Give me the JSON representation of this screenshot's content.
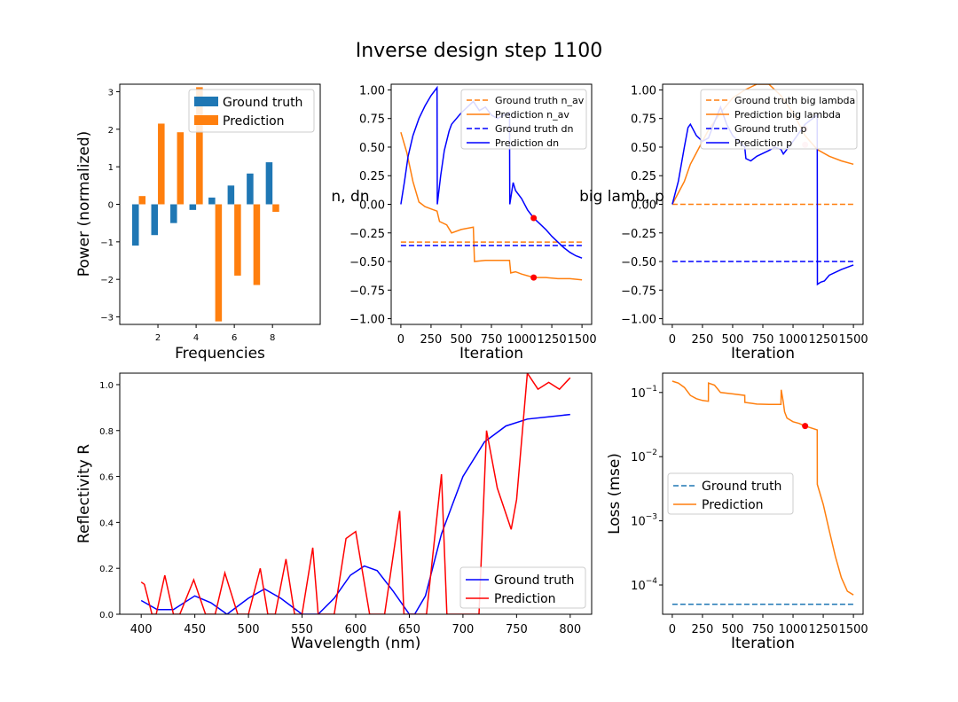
{
  "title": "Inverse design step 1100",
  "colors": {
    "c0": "#1f77b4",
    "c1": "#ff7f0e",
    "blue": "#0000ff",
    "red": "#ff0000",
    "axes": "#000000"
  },
  "chart_data": [
    {
      "id": "freq",
      "type": "bar",
      "xlabel": "Frequencies",
      "ylabel": "Power (normalized)",
      "xlim": [
        0,
        10.5
      ],
      "ylim": [
        -3.2,
        3.2
      ],
      "xticks": [
        2,
        4,
        6,
        8
      ],
      "yticks": [
        -3,
        -2,
        -1,
        0,
        1,
        2,
        3
      ],
      "legend_position": "top-right",
      "categories": [
        1,
        2,
        3,
        4,
        5,
        6,
        7,
        8,
        9
      ],
      "series": [
        {
          "name": "Ground truth",
          "color": "#1f77b4",
          "values": [
            -1.1,
            -0.82,
            -0.5,
            -0.15,
            0.18,
            0.5,
            0.82,
            1.12,
            0
          ]
        },
        {
          "name": "Prediction",
          "color": "#ff7f0e",
          "values": [
            0.22,
            2.15,
            1.92,
            3.12,
            -3.12,
            -1.9,
            -2.15,
            -0.2,
            0
          ]
        }
      ]
    },
    {
      "id": "ndn",
      "type": "line",
      "xlabel": "Iteration",
      "ylabel": "n, dn",
      "xlim": [
        -80,
        1580
      ],
      "ylim": [
        -1.05,
        1.05
      ],
      "xticks": [
        0,
        250,
        500,
        750,
        1000,
        1250,
        1500
      ],
      "yticks": [
        -1.0,
        -0.75,
        -0.5,
        -0.25,
        0.0,
        0.25,
        0.5,
        0.75,
        1.0
      ],
      "legend_position": "top-right",
      "series": [
        {
          "name": "Ground truth n_av",
          "color": "#ff7f0e",
          "dash": true,
          "x": [
            0,
            1500
          ],
          "y": [
            -0.33,
            -0.33
          ]
        },
        {
          "name": "Prediction n_av",
          "color": "#ff7f0e",
          "x": [
            0,
            50,
            100,
            150,
            200,
            250,
            300,
            320,
            380,
            420,
            500,
            600,
            610,
            700,
            900,
            910,
            950,
            1000,
            1100,
            1200,
            1300,
            1400,
            1500
          ],
          "y": [
            0.63,
            0.45,
            0.2,
            0.02,
            -0.02,
            -0.04,
            -0.06,
            -0.15,
            -0.18,
            -0.25,
            -0.22,
            -0.2,
            -0.5,
            -0.49,
            -0.49,
            -0.6,
            -0.59,
            -0.61,
            -0.64,
            -0.64,
            -0.65,
            -0.65,
            -0.66
          ]
        },
        {
          "name": "Ground truth dn",
          "color": "#0000ff",
          "dash": true,
          "x": [
            0,
            1500
          ],
          "y": [
            -0.36,
            -0.36
          ]
        },
        {
          "name": "Prediction dn",
          "color": "#0000ff",
          "x": [
            0,
            30,
            60,
            100,
            150,
            200,
            250,
            300,
            302,
            330,
            360,
            400,
            420,
            500,
            600,
            650,
            700,
            750,
            800,
            850,
            900,
            902,
            930,
            950,
            1000,
            1050,
            1100,
            1150,
            1200,
            1250,
            1300,
            1350,
            1400,
            1450,
            1500
          ],
          "y": [
            0.0,
            0.2,
            0.42,
            0.6,
            0.75,
            0.86,
            0.95,
            1.02,
            0.0,
            0.25,
            0.47,
            0.64,
            0.7,
            0.8,
            0.9,
            0.82,
            0.85,
            0.78,
            0.75,
            0.78,
            0.8,
            0.0,
            0.19,
            0.12,
            0.05,
            -0.05,
            -0.12,
            -0.17,
            -0.22,
            -0.28,
            -0.33,
            -0.38,
            -0.42,
            -0.45,
            -0.47
          ]
        }
      ],
      "markers": [
        {
          "x": 1100,
          "y": -0.12,
          "color": "#ff0000"
        },
        {
          "x": 1100,
          "y": -0.64,
          "color": "#ff0000"
        }
      ]
    },
    {
      "id": "lambp",
      "type": "line",
      "xlabel": "Iteration",
      "ylabel": "big lamb, p",
      "xlim": [
        -80,
        1580
      ],
      "ylim": [
        -1.05,
        1.05
      ],
      "xticks": [
        0,
        250,
        500,
        750,
        1000,
        1250,
        1500
      ],
      "yticks": [
        -1.0,
        -0.75,
        -0.5,
        -0.25,
        0.0,
        0.25,
        0.5,
        0.75,
        1.0
      ],
      "legend_position": "top-right",
      "series": [
        {
          "name": "Ground truth big lambda",
          "color": "#ff7f0e",
          "dash": true,
          "x": [
            0,
            1500
          ],
          "y": [
            0.0,
            0.0
          ]
        },
        {
          "name": "Prediction big lambda",
          "color": "#ff7f0e",
          "x": [
            0,
            50,
            100,
            150,
            200,
            250,
            300,
            400,
            500,
            600,
            700,
            800,
            900,
            1000,
            1100,
            1200,
            1300,
            1400,
            1500
          ],
          "y": [
            0.0,
            0.1,
            0.2,
            0.35,
            0.45,
            0.55,
            0.65,
            0.8,
            0.93,
            1.0,
            1.05,
            1.05,
            0.95,
            0.8,
            0.6,
            0.48,
            0.42,
            0.38,
            0.35
          ]
        },
        {
          "name": "Ground truth p",
          "color": "#0000ff",
          "dash": true,
          "x": [
            0,
            1500
          ],
          "y": [
            -0.5,
            -0.5
          ]
        },
        {
          "name": "Prediction p",
          "color": "#0000ff",
          "x": [
            0,
            50,
            100,
            130,
            150,
            200,
            250,
            300,
            350,
            400,
            450,
            500,
            550,
            600,
            610,
            650,
            700,
            800,
            850,
            900,
            920,
            1000,
            1100,
            1200,
            1202,
            1230,
            1260,
            1300,
            1400,
            1500
          ],
          "y": [
            0.0,
            0.2,
            0.5,
            0.67,
            0.7,
            0.6,
            0.55,
            0.58,
            0.72,
            0.85,
            0.7,
            0.6,
            0.55,
            0.5,
            0.4,
            0.38,
            0.42,
            0.47,
            0.5,
            0.48,
            0.44,
            0.55,
            0.7,
            0.78,
            -0.7,
            -0.68,
            -0.67,
            -0.62,
            -0.57,
            -0.53
          ]
        }
      ],
      "markers": [
        {
          "x": 1100,
          "y": 0.66,
          "color": "#ffb6c1"
        },
        {
          "x": 1100,
          "y": 0.52,
          "color": "#ffb6c1"
        }
      ]
    },
    {
      "id": "refl",
      "type": "line",
      "xlabel": "Wavelength (nm)",
      "ylabel": "Reflectivity R",
      "xlim": [
        380,
        820
      ],
      "ylim": [
        0.0,
        1.05
      ],
      "xticks": [
        400,
        450,
        500,
        550,
        600,
        650,
        700,
        750,
        800
      ],
      "yticks": [
        0.0,
        0.2,
        0.4,
        0.6,
        0.8,
        1.0
      ],
      "legend_position": "bottom-right",
      "series": [
        {
          "name": "Ground truth",
          "color": "#0000ff",
          "x": [
            400,
            415,
            430,
            450,
            465,
            480,
            500,
            515,
            530,
            550,
            565,
            580,
            595,
            608,
            620,
            635,
            650,
            655,
            665,
            680,
            700,
            720,
            740,
            760,
            780,
            800
          ],
          "y": [
            0.06,
            0.02,
            0.02,
            0.08,
            0.05,
            0.0,
            0.07,
            0.11,
            0.07,
            0.0,
            0.0,
            0.07,
            0.17,
            0.21,
            0.19,
            0.1,
            0.0,
            0.0,
            0.08,
            0.35,
            0.6,
            0.75,
            0.82,
            0.85,
            0.86,
            0.87
          ]
        },
        {
          "name": "Prediction",
          "color": "#ff0000",
          "x": [
            400,
            403,
            410,
            414,
            422,
            430,
            436,
            449,
            460,
            469,
            478,
            490,
            500,
            511,
            518,
            525,
            535,
            543,
            550,
            560,
            565,
            572,
            580,
            591,
            600,
            613,
            619,
            627,
            641,
            645,
            662,
            666,
            680,
            685,
            700,
            710,
            715,
            722,
            732,
            745,
            750,
            760,
            770,
            780,
            790,
            800
          ],
          "y": [
            0.14,
            0.13,
            0.0,
            0.0,
            0.17,
            0.0,
            0.0,
            0.15,
            0.0,
            0.0,
            0.18,
            0.0,
            0.0,
            0.2,
            0.0,
            0.0,
            0.24,
            0.0,
            0.0,
            0.29,
            0.0,
            0.0,
            0.0,
            0.33,
            0.36,
            0.0,
            0.0,
            0.0,
            0.45,
            0.0,
            0.0,
            0.0,
            0.61,
            0.0,
            0.0,
            0.0,
            0.0,
            0.8,
            0.55,
            0.37,
            0.5,
            1.05,
            0.98,
            1.01,
            0.98,
            1.03
          ]
        }
      ]
    },
    {
      "id": "loss",
      "type": "line",
      "xlabel": "Iteration",
      "ylabel": "Loss (mse)",
      "yscale": "log",
      "xlim": [
        -80,
        1580
      ],
      "ylim": [
        3.5e-05,
        0.2
      ],
      "xticks": [
        0,
        250,
        500,
        750,
        1000,
        1250,
        1500
      ],
      "yticks": [
        0.0001,
        0.001,
        0.01,
        0.1
      ],
      "yticklabels": [
        "10",
        "10",
        "10",
        "10"
      ],
      "ytick_exponents": [
        "−4",
        "−3",
        "−2",
        "−1"
      ],
      "legend_position": "center-left",
      "series": [
        {
          "name": "Ground truth",
          "color": "#1f77b4",
          "dash": true,
          "x": [
            0,
            1500
          ],
          "y": [
            5e-05,
            5e-05
          ]
        },
        {
          "name": "Prediction",
          "color": "#ff7f0e",
          "x": [
            0,
            50,
            100,
            150,
            200,
            250,
            299,
            300,
            350,
            400,
            500,
            600,
            601,
            650,
            700,
            800,
            900,
            902,
            910,
            920,
            930,
            950,
            1000,
            1050,
            1100,
            1150,
            1200,
            1201,
            1250,
            1300,
            1350,
            1400,
            1450,
            1500
          ],
          "y": [
            0.15,
            0.14,
            0.12,
            0.09,
            0.08,
            0.075,
            0.073,
            0.14,
            0.13,
            0.1,
            0.095,
            0.09,
            0.07,
            0.068,
            0.066,
            0.065,
            0.065,
            0.11,
            0.09,
            0.07,
            0.05,
            0.04,
            0.035,
            0.033,
            0.03,
            0.028,
            0.026,
            0.0037,
            0.0018,
            0.0007,
            0.00028,
            0.00013,
            8e-05,
            7e-05
          ]
        }
      ],
      "markers": [
        {
          "x": 1100,
          "y": 0.03,
          "color": "#ff0000"
        }
      ]
    }
  ]
}
